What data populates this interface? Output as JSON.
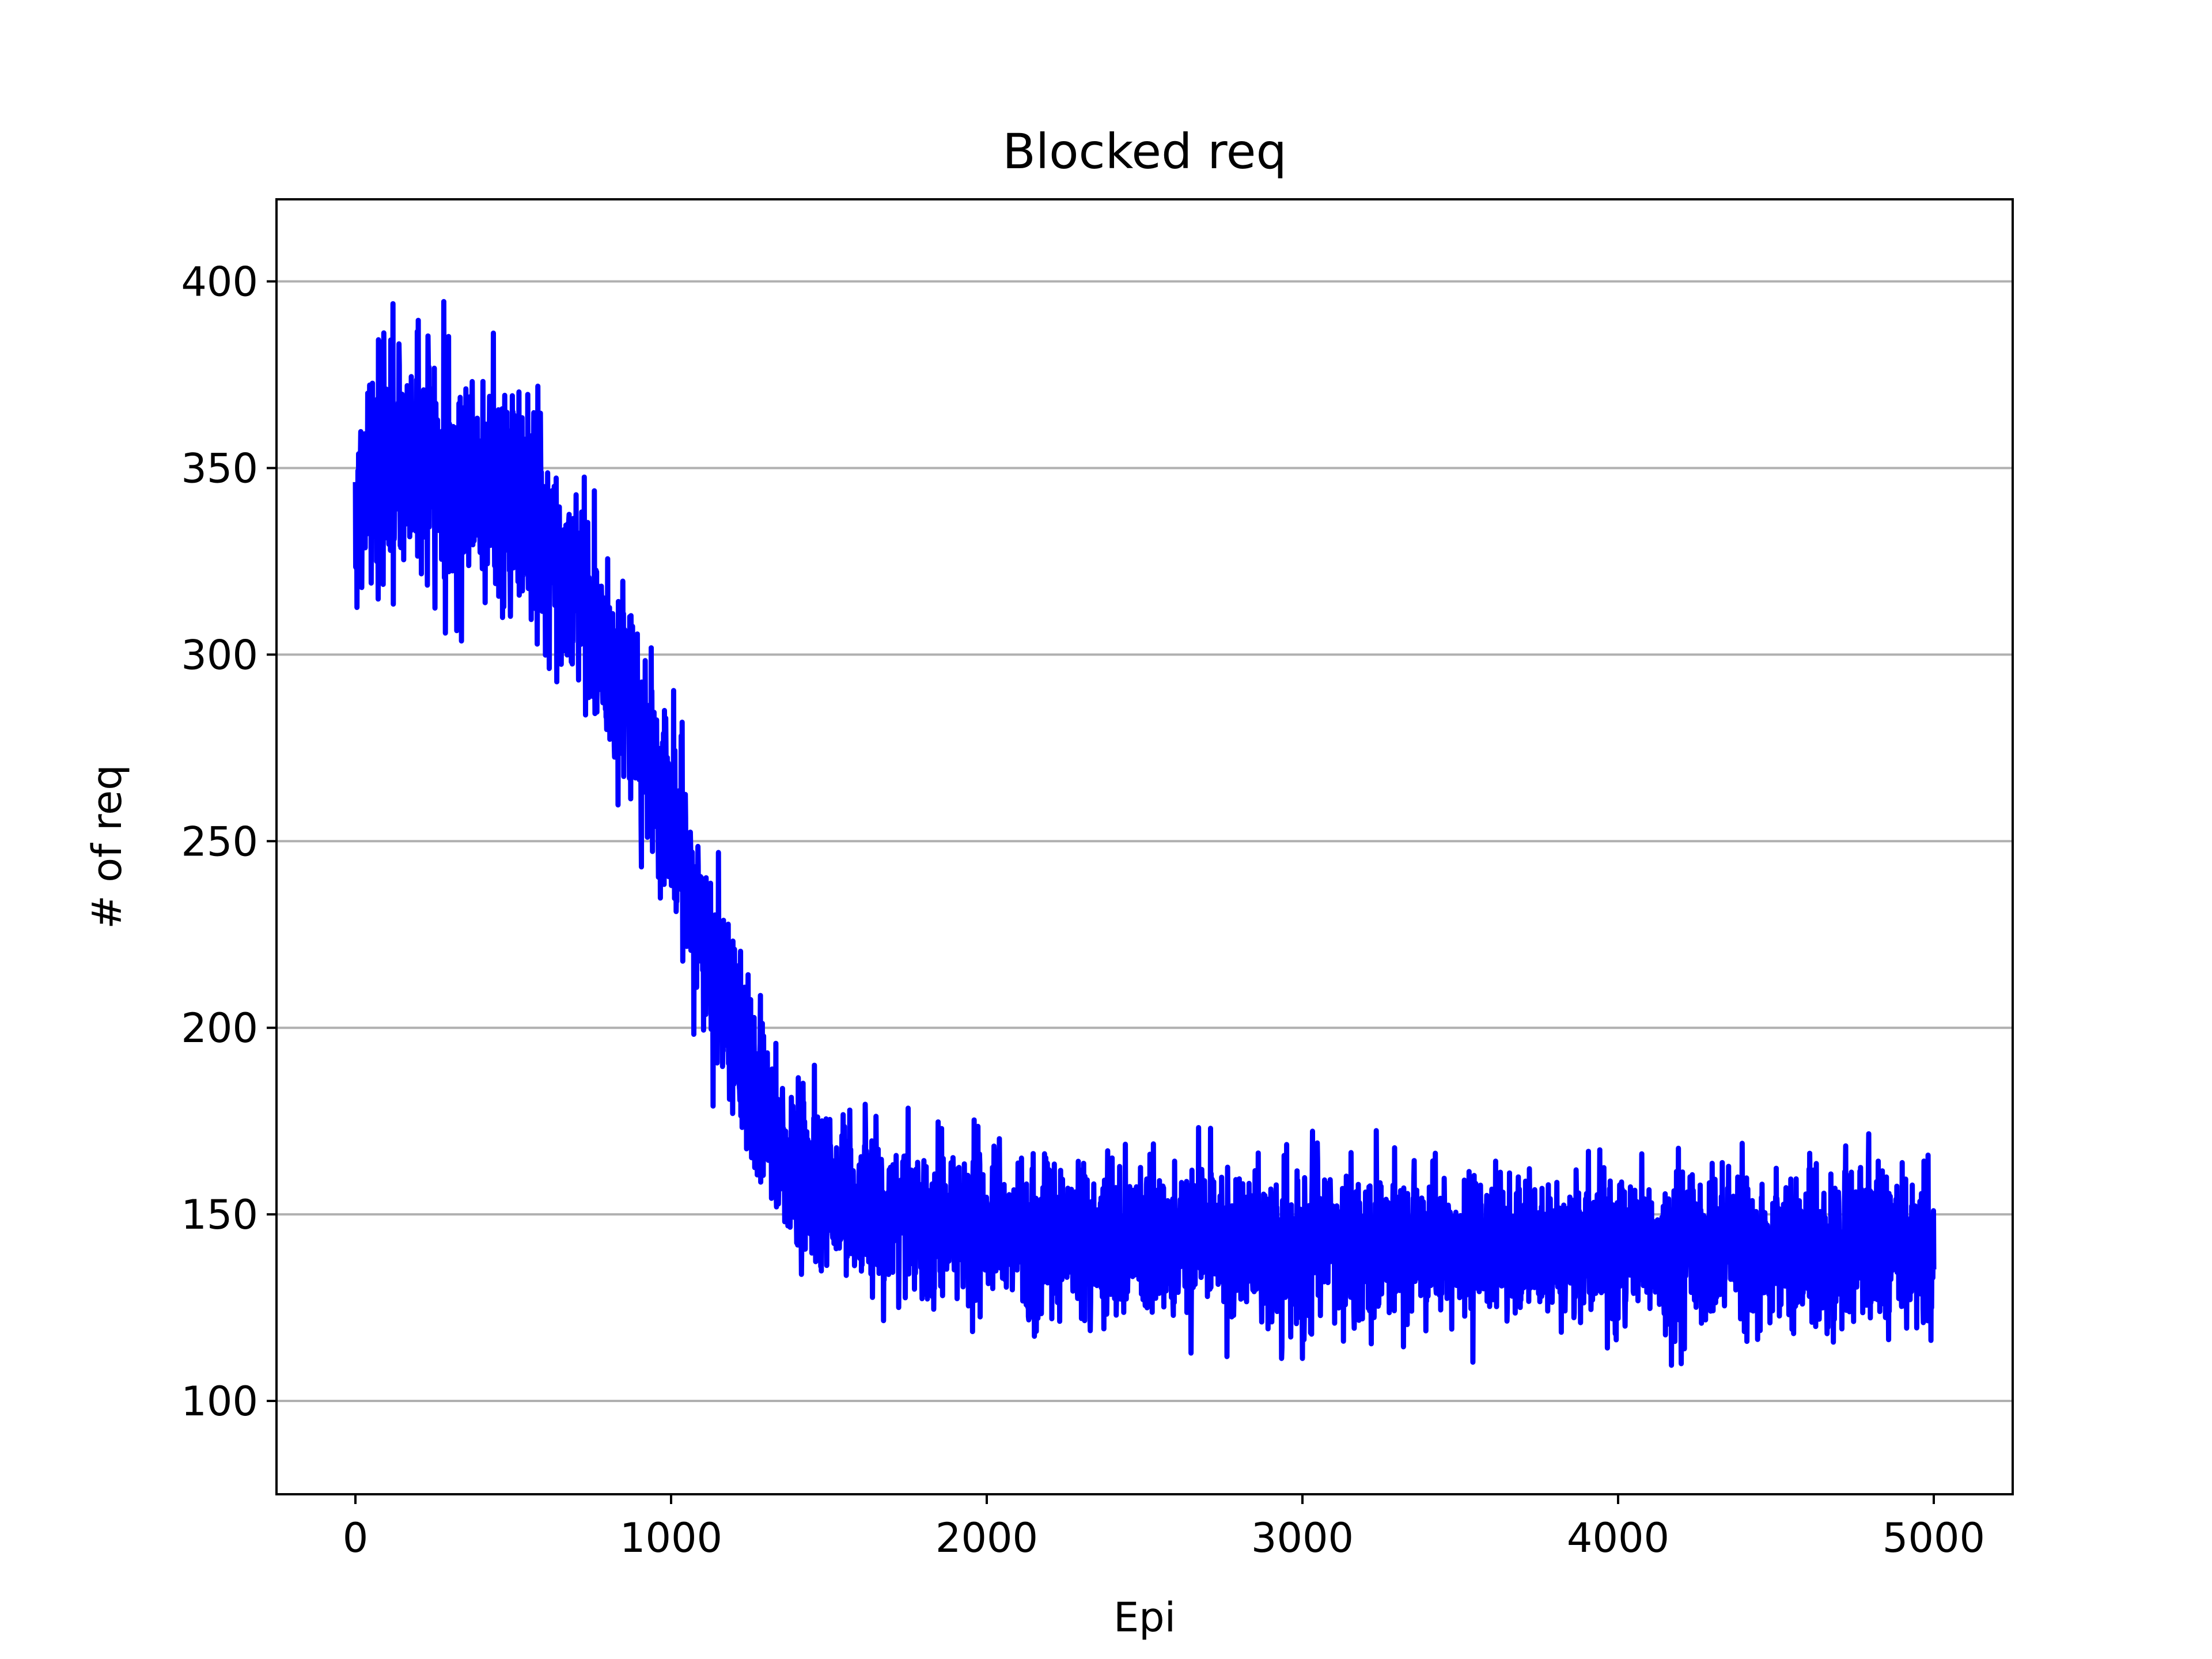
{
  "chart_data": {
    "type": "line",
    "title": "Blocked req",
    "xlabel": "Epi",
    "ylabel": "# of req",
    "xlim": [
      -250,
      5250
    ],
    "ylim": [
      75,
      422
    ],
    "xticks": [
      0,
      1000,
      2000,
      3000,
      4000,
      5000
    ],
    "yticks": [
      100,
      150,
      200,
      250,
      300,
      350,
      400
    ],
    "grid": "y-major",
    "legend": "none",
    "series": [
      {
        "color": "#0000ff",
        "x": [
          0,
          50,
          100,
          150,
          200,
          250,
          300,
          350,
          400,
          450,
          500,
          550,
          600,
          650,
          700,
          750,
          800,
          850,
          900,
          950,
          1000,
          1050,
          1100,
          1150,
          1200,
          1250,
          1300,
          1350,
          1400,
          1450,
          1500,
          1600,
          1700,
          1800,
          1900,
          2000,
          2200,
          2400,
          2600,
          2800,
          3000,
          3200,
          3400,
          3600,
          3800,
          4000,
          4200,
          4400,
          4600,
          4800,
          5000
        ],
        "y": [
          335,
          352,
          355,
          348,
          357,
          350,
          345,
          348,
          346,
          347,
          342,
          338,
          335,
          322,
          318,
          308,
          300,
          290,
          280,
          270,
          256,
          240,
          225,
          212,
          200,
          188,
          175,
          167,
          162,
          159,
          156,
          153,
          150,
          148,
          147,
          145,
          144,
          143,
          143,
          142,
          142,
          142,
          141,
          141,
          141,
          141,
          140,
          141,
          141,
          141,
          140
        ],
        "spread": [
          22,
          28,
          30,
          30,
          30,
          28,
          28,
          28,
          28,
          26,
          26,
          26,
          25,
          24,
          24,
          24,
          24,
          24,
          24,
          24,
          23,
          22,
          22,
          22,
          22,
          21,
          21,
          20,
          20,
          20,
          20,
          19,
          19,
          19,
          19,
          18,
          18,
          18,
          18,
          18,
          18,
          18,
          18,
          18,
          18,
          18,
          18,
          18,
          18,
          18,
          18
        ],
        "samples": 5000
      }
    ]
  }
}
